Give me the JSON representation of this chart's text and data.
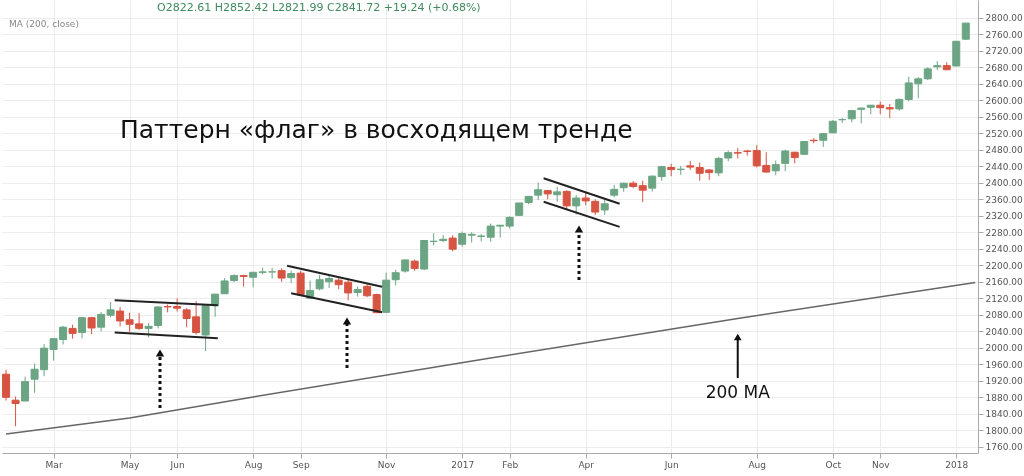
{
  "chart_data": {
    "type": "candlestick",
    "title": "Паттерн «флаг» в восходящем тренде",
    "annotations": [
      "O2822.61  H2852.42  L2821.99  C2841.72  +19.24 (+0.68%)",
      "MA (200, close)"
    ],
    "x": [
      "2016-02-01",
      "2016-02-08",
      "2016-02-15",
      "2016-02-22",
      "2016-02-29",
      "2016-03-07",
      "2016-03-14",
      "2016-03-21",
      "2016-03-28",
      "2016-04-04",
      "2016-04-11",
      "2016-04-18",
      "2016-04-25",
      "2016-05-02",
      "2016-05-09",
      "2016-05-16",
      "2016-05-23",
      "2016-05-30",
      "2016-06-06",
      "2016-06-13",
      "2016-06-20",
      "2016-06-27",
      "2016-07-04",
      "2016-07-11",
      "2016-07-18",
      "2016-07-25",
      "2016-08-01",
      "2016-08-08",
      "2016-08-15",
      "2016-08-22",
      "2016-08-29",
      "2016-09-05",
      "2016-09-12",
      "2016-09-19",
      "2016-09-26",
      "2016-10-03",
      "2016-10-10",
      "2016-10-17",
      "2016-10-24",
      "2016-10-31",
      "2016-11-07",
      "2016-11-14",
      "2016-11-21",
      "2016-11-28",
      "2016-12-05",
      "2016-12-12",
      "2016-12-19",
      "2016-12-26",
      "2017-01-02",
      "2017-01-09",
      "2017-01-16",
      "2017-01-23",
      "2017-01-30",
      "2017-02-06",
      "2017-02-13",
      "2017-02-20",
      "2017-02-27",
      "2017-03-06",
      "2017-03-13",
      "2017-03-20",
      "2017-03-27",
      "2017-04-03",
      "2017-04-10",
      "2017-04-17",
      "2017-04-24",
      "2017-05-01",
      "2017-05-08",
      "2017-05-15",
      "2017-05-22",
      "2017-05-29",
      "2017-06-05",
      "2017-06-12",
      "2017-06-19",
      "2017-06-26",
      "2017-07-03",
      "2017-07-10",
      "2017-07-17",
      "2017-07-24",
      "2017-07-31",
      "2017-08-07",
      "2017-08-14",
      "2017-08-21",
      "2017-08-28",
      "2017-09-04",
      "2017-09-11",
      "2017-09-18",
      "2017-09-25",
      "2017-10-02",
      "2017-10-09",
      "2017-10-16",
      "2017-10-23",
      "2017-10-30",
      "2017-11-06",
      "2017-11-13",
      "2017-11-20",
      "2017-11-27",
      "2017-12-04",
      "2017-12-11",
      "2017-12-18",
      "2017-12-25",
      "2018-01-01",
      "2018-01-08"
    ],
    "ohlc": [
      [
        1936,
        1947,
        1872,
        1880
      ],
      [
        1873,
        1882,
        1810,
        1865
      ],
      [
        1871,
        1930,
        1871,
        1918
      ],
      [
        1924,
        1962,
        1891,
        1948
      ],
      [
        1947,
        2009,
        1931,
        1999
      ],
      [
        1996,
        2022,
        1969,
        2022
      ],
      [
        2020,
        2053,
        2008,
        2050
      ],
      [
        2047,
        2056,
        2022,
        2035
      ],
      [
        2037,
        2075,
        2023,
        2073
      ],
      [
        2073,
        2075,
        2033,
        2048
      ],
      [
        2050,
        2087,
        2040,
        2081
      ],
      [
        2079,
        2111,
        2074,
        2092
      ],
      [
        2089,
        2099,
        2052,
        2065
      ],
      [
        2068,
        2085,
        2039,
        2057
      ],
      [
        2058,
        2084,
        2043,
        2047
      ],
      [
        2047,
        2060,
        2025,
        2052
      ],
      [
        2054,
        2100,
        2047,
        2099
      ],
      [
        2100,
        2105,
        2086,
        2099
      ],
      [
        2100,
        2120,
        2088,
        2096
      ],
      [
        2092,
        2096,
        2050,
        2071
      ],
      [
        2075,
        2113,
        2032,
        2037
      ],
      [
        2031,
        2103,
        1992,
        2103
      ],
      [
        2102,
        2131,
        2075,
        2130
      ],
      [
        2131,
        2169,
        2131,
        2162
      ],
      [
        2163,
        2178,
        2159,
        2175
      ],
      [
        2175,
        2177,
        2148,
        2173
      ],
      [
        2171,
        2183,
        2147,
        2183
      ],
      [
        2183,
        2194,
        2178,
        2184
      ],
      [
        2184,
        2194,
        2168,
        2184
      ],
      [
        2187,
        2193,
        2160,
        2169
      ],
      [
        2170,
        2187,
        2157,
        2180
      ],
      [
        2181,
        2187,
        2127,
        2128
      ],
      [
        2120,
        2163,
        2120,
        2139
      ],
      [
        2143,
        2177,
        2139,
        2165
      ],
      [
        2160,
        2175,
        2145,
        2168
      ],
      [
        2164,
        2169,
        2142,
        2153
      ],
      [
        2159,
        2169,
        2115,
        2133
      ],
      [
        2134,
        2148,
        2124,
        2141
      ],
      [
        2149,
        2154,
        2123,
        2126
      ],
      [
        2129,
        2131,
        2084,
        2085
      ],
      [
        2086,
        2182,
        2084,
        2164
      ],
      [
        2165,
        2189,
        2151,
        2182
      ],
      [
        2186,
        2213,
        2182,
        2213
      ],
      [
        2210,
        2214,
        2187,
        2192
      ],
      [
        2191,
        2260,
        2188,
        2260
      ],
      [
        2258,
        2278,
        2248,
        2258
      ],
      [
        2260,
        2273,
        2256,
        2263
      ],
      [
        2266,
        2273,
        2234,
        2239
      ],
      [
        2251,
        2282,
        2245,
        2277
      ],
      [
        2273,
        2280,
        2255,
        2275
      ],
      [
        2270,
        2276,
        2258,
        2271
      ],
      [
        2268,
        2301,
        2257,
        2295
      ],
      [
        2295,
        2298,
        2267,
        2297
      ],
      [
        2295,
        2319,
        2289,
        2316
      ],
      [
        2321,
        2351,
        2321,
        2351
      ],
      [
        2352,
        2368,
        2348,
        2367
      ],
      [
        2370,
        2401,
        2358,
        2383
      ],
      [
        2381,
        2382,
        2360,
        2373
      ],
      [
        2371,
        2390,
        2354,
        2378
      ],
      [
        2379,
        2382,
        2335,
        2344
      ],
      [
        2344,
        2370,
        2323,
        2363
      ],
      [
        2363,
        2378,
        2345,
        2356
      ],
      [
        2355,
        2360,
        2322,
        2329
      ],
      [
        2334,
        2361,
        2322,
        2349
      ],
      [
        2370,
        2395,
        2365,
        2384
      ],
      [
        2388,
        2400,
        2378,
        2399
      ],
      [
        2399,
        2404,
        2387,
        2391
      ],
      [
        2393,
        2405,
        2353,
        2382
      ],
      [
        2387,
        2418,
        2379,
        2416
      ],
      [
        2415,
        2440,
        2405,
        2439
      ],
      [
        2437,
        2446,
        2416,
        2432
      ],
      [
        2432,
        2441,
        2419,
        2433
      ],
      [
        2441,
        2453,
        2431,
        2438
      ],
      [
        2437,
        2449,
        2405,
        2423
      ],
      [
        2431,
        2433,
        2407,
        2425
      ],
      [
        2424,
        2463,
        2416,
        2459
      ],
      [
        2460,
        2478,
        2452,
        2473
      ],
      [
        2473,
        2484,
        2459,
        2472
      ],
      [
        2477,
        2480,
        2466,
        2476
      ],
      [
        2478,
        2491,
        2437,
        2441
      ],
      [
        2442,
        2474,
        2425,
        2426
      ],
      [
        2429,
        2454,
        2418,
        2444
      ],
      [
        2447,
        2480,
        2428,
        2477
      ],
      [
        2474,
        2475,
        2447,
        2461
      ],
      [
        2469,
        2500,
        2469,
        2500
      ],
      [
        2503,
        2508,
        2496,
        2502
      ],
      [
        2503,
        2520,
        2487,
        2519
      ],
      [
        2521,
        2552,
        2521,
        2549
      ],
      [
        2553,
        2557,
        2545,
        2553
      ],
      [
        2555,
        2575,
        2547,
        2575
      ],
      [
        2578,
        2582,
        2544,
        2581
      ],
      [
        2583,
        2588,
        2566,
        2588
      ],
      [
        2588,
        2597,
        2566,
        2582
      ],
      [
        2582,
        2591,
        2557,
        2579
      ],
      [
        2579,
        2604,
        2575,
        2602
      ],
      [
        2602,
        2657,
        2597,
        2642
      ],
      [
        2640,
        2656,
        2605,
        2652
      ],
      [
        2652,
        2680,
        2649,
        2676
      ],
      [
        2681,
        2695,
        2673,
        2684
      ],
      [
        2684,
        2692,
        2673,
        2674
      ],
      [
        2683,
        2743,
        2683,
        2743
      ],
      [
        2748,
        2787,
        2746,
        2787
      ]
    ],
    "colors": [
      "#d75442",
      "#d75442",
      "#6ba583",
      "#6ba583",
      "#6ba583",
      "#6ba583",
      "#6ba583",
      "#d75442",
      "#6ba583",
      "#d75442",
      "#6ba583",
      "#6ba583",
      "#d75442",
      "#d75442",
      "#d75442",
      "#6ba583",
      "#6ba583",
      "#d75442",
      "#d75442",
      "#d75442",
      "#d75442",
      "#6ba583",
      "#6ba583",
      "#6ba583",
      "#6ba583",
      "#d75442",
      "#6ba583",
      "#6ba583",
      "#6ba583",
      "#d75442",
      "#6ba583",
      "#d75442",
      "#6ba583",
      "#6ba583",
      "#6ba583",
      "#d75442",
      "#d75442",
      "#6ba583",
      "#d75442",
      "#d75442",
      "#6ba583",
      "#6ba583",
      "#6ba583",
      "#d75442",
      "#6ba583",
      "#6ba583",
      "#6ba583",
      "#d75442",
      "#6ba583",
      "#6ba583",
      "#6ba583",
      "#6ba583",
      "#6ba583",
      "#6ba583",
      "#6ba583",
      "#6ba583",
      "#6ba583",
      "#d75442",
      "#6ba583",
      "#d75442",
      "#6ba583",
      "#d75442",
      "#d75442",
      "#6ba583",
      "#6ba583",
      "#6ba583",
      "#d75442",
      "#d75442",
      "#6ba583",
      "#6ba583",
      "#d75442",
      "#6ba583",
      "#d75442",
      "#d75442",
      "#d75442",
      "#6ba583",
      "#6ba583",
      "#d75442",
      "#d75442",
      "#d75442",
      "#d75442",
      "#6ba583",
      "#6ba583",
      "#d75442",
      "#6ba583",
      "#d75442",
      "#6ba583",
      "#6ba583",
      "#6ba583",
      "#6ba583",
      "#6ba583",
      "#6ba583",
      "#d75442",
      "#d75442",
      "#6ba583",
      "#6ba583",
      "#6ba583",
      "#6ba583",
      "#6ba583",
      "#d75442",
      "#6ba583",
      "#6ba583"
    ],
    "series": [
      {
        "type": "line",
        "name": "200 MA",
        "color": "#666666",
        "x": [
          "2016-02-01",
          "2016-05-02",
          "2016-08-01",
          "2017-01-23",
          "2017-07-24",
          "2018-01-15"
        ],
        "values": [
          1791,
          1830,
          1881,
          1975,
          2071,
          2158
        ]
      },
      {
        "type": "line",
        "color": "#222222",
        "x": [
          "2016-04-21",
          "2016-07-06"
        ],
        "values": [
          2115,
          2103
        ]
      },
      {
        "type": "line",
        "color": "#222222",
        "x": [
          "2016-04-21",
          "2016-07-06"
        ],
        "values": [
          2037,
          2023
        ]
      },
      {
        "type": "line",
        "color": "#222222",
        "x": [
          "2016-08-26",
          "2016-11-04"
        ],
        "values": [
          2199,
          2148
        ]
      },
      {
        "type": "line",
        "color": "#222222",
        "x": [
          "2016-08-29",
          "2016-11-04"
        ],
        "values": [
          2132,
          2086
        ]
      },
      {
        "type": "line",
        "color": "#222222",
        "x": [
          "2017-03-03",
          "2017-04-28"
        ],
        "values": [
          2411,
          2349
        ]
      },
      {
        "type": "line",
        "color": "#222222",
        "x": [
          "2017-03-03",
          "2017-04-28"
        ],
        "values": [
          2354,
          2293
        ]
      }
    ],
    "xlim": [
      "2016-01-29",
      "2018-01-17"
    ],
    "xticks": [
      {
        "value": "2016-03-07",
        "label": "Mar"
      },
      {
        "value": "2016-05-02",
        "label": "May"
      },
      {
        "value": "2016-06-06",
        "label": "Jun"
      },
      {
        "value": "2016-08-01",
        "label": "Aug"
      },
      {
        "value": "2016-09-05",
        "label": "Sep"
      },
      {
        "value": "2016-11-07",
        "label": "Nov"
      },
      {
        "value": "2017-01-02",
        "label": "2017"
      },
      {
        "value": "2017-02-06",
        "label": "Feb"
      },
      {
        "value": "2017-04-03",
        "label": "Apr"
      },
      {
        "value": "2017-06-05",
        "label": "Jun"
      },
      {
        "value": "2017-08-07",
        "label": "Aug"
      },
      {
        "value": "2017-10-02",
        "label": "Oct"
      },
      {
        "value": "2017-11-06",
        "label": "Nov"
      },
      {
        "value": "2018-01-01",
        "label": "2018"
      }
    ],
    "ylim": [
      1745,
      2843
    ],
    "yticks": [
      {
        "value": 1760,
        "label": "1760.00"
      },
      {
        "value": 1800,
        "label": "1800.00"
      },
      {
        "value": 1840,
        "label": "1840.00"
      },
      {
        "value": 1880,
        "label": "1880.00"
      },
      {
        "value": 1920,
        "label": "1920.00"
      },
      {
        "value": 1960,
        "label": "1960.00"
      },
      {
        "value": 2000,
        "label": "2000.00"
      },
      {
        "value": 2040,
        "label": "2040.00"
      },
      {
        "value": 2080,
        "label": "2080.00"
      },
      {
        "value": 2120,
        "label": "2120.00"
      },
      {
        "value": 2160,
        "label": "2160.00"
      },
      {
        "value": 2200,
        "label": "2200.00"
      },
      {
        "value": 2240,
        "label": "2240.00"
      },
      {
        "value": 2280,
        "label": "2280.00"
      },
      {
        "value": 2320,
        "label": "2320.00"
      },
      {
        "value": 2360,
        "label": "2360.00"
      },
      {
        "value": 2400,
        "label": "2400.00"
      },
      {
        "value": 2440,
        "label": "2440.00"
      },
      {
        "value": 2480,
        "label": "2480.00"
      },
      {
        "value": 2520,
        "label": "2520.00"
      },
      {
        "value": 2560,
        "label": "2560.00"
      },
      {
        "value": 2600,
        "label": "2600.00"
      },
      {
        "value": 2640,
        "label": "2640.00"
      },
      {
        "value": 2680,
        "label": "2680.00"
      },
      {
        "value": 2720,
        "label": "2720.00"
      },
      {
        "value": 2760,
        "label": "2760.00"
      },
      {
        "value": 2800,
        "label": "2800.00"
      }
    ],
    "grid": true
  }
}
